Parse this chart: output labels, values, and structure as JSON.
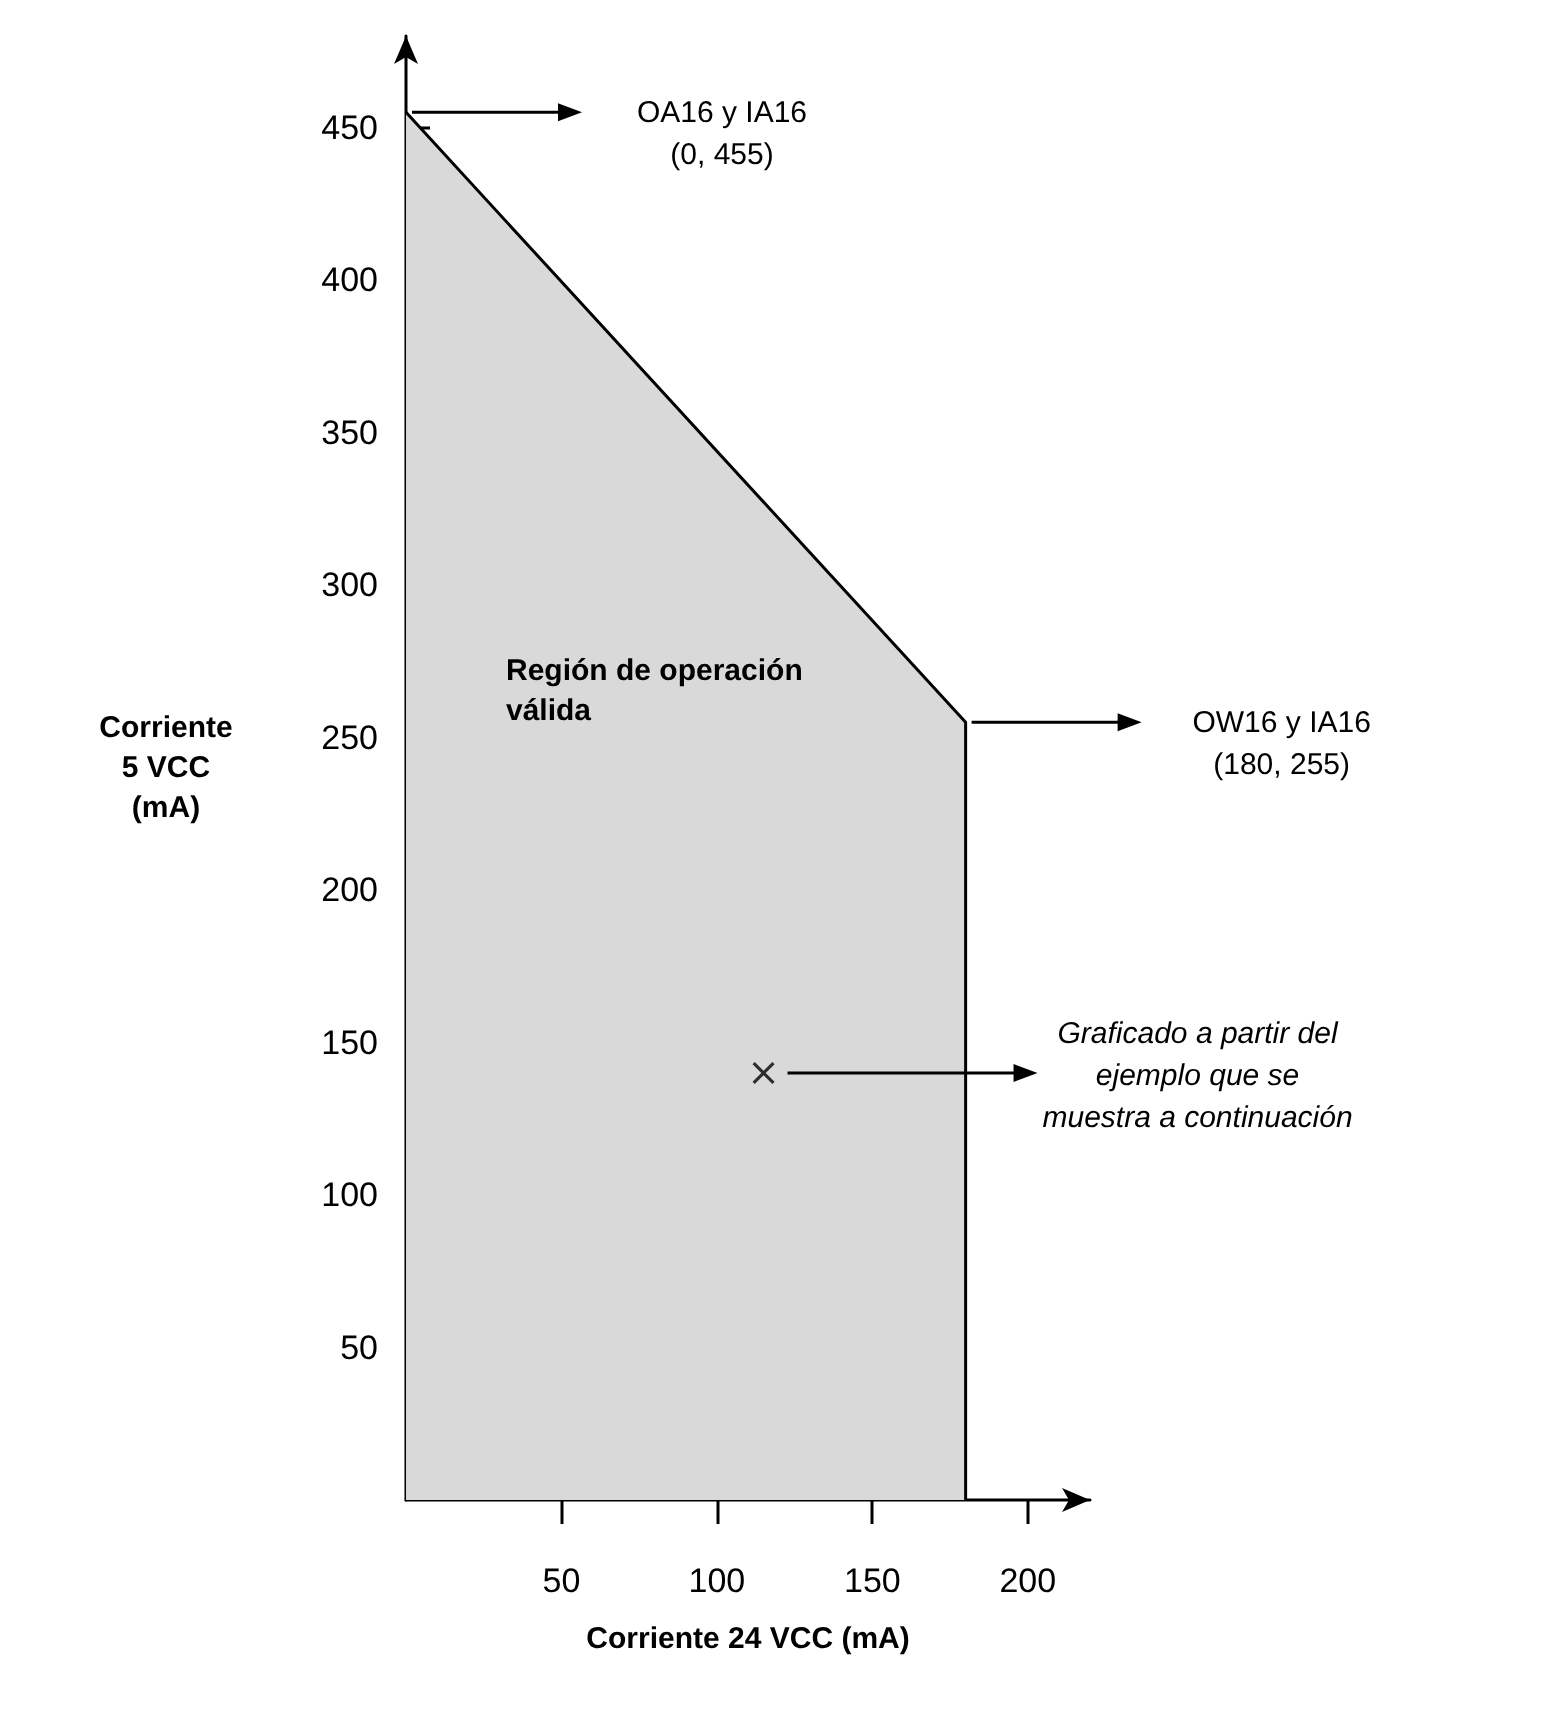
{
  "chart_data": {
    "type": "area",
    "xlabel": "Corriente 24 VCC (mA)",
    "ylabel": "Corriente\n5 VCC\n(mA)",
    "xlim": [
      0,
      220
    ],
    "ylim": [
      0,
      480
    ],
    "xticks": [
      50,
      100,
      150,
      200
    ],
    "yticks": [
      50,
      100,
      150,
      200,
      250,
      300,
      350,
      400,
      450
    ],
    "grid": false,
    "series": [
      {
        "type": "area",
        "color": "#d9d9d9",
        "x": [
          0,
          180,
          180
        ],
        "values": [
          455,
          255,
          0
        ]
      },
      {
        "type": "scatter",
        "marker": "cross",
        "color": "#000000",
        "x": [
          115
        ],
        "values": [
          140
        ]
      }
    ],
    "annotations": [
      "OA16 y IA16\n(0, 455)",
      "OW16 y IA16\n(180, 255)",
      "Graficado a partir del\nejemplo que se\nmuestra a continuación",
      "Región de operación\nválida"
    ]
  }
}
